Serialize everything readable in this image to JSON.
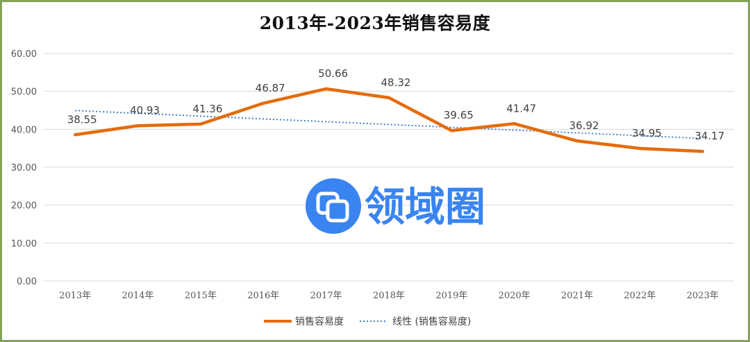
{
  "chart_data": {
    "type": "line",
    "title": "2013年-2023年销售容易度",
    "categories": [
      "2013年",
      "2014年",
      "2015年",
      "2016年",
      "2017年",
      "2018年",
      "2019年",
      "2020年",
      "2021年",
      "2022年",
      "2023年"
    ],
    "series": [
      {
        "name": "销售容易度",
        "values": [
          38.55,
          40.93,
          41.36,
          46.87,
          50.66,
          48.32,
          39.65,
          41.47,
          36.92,
          34.95,
          34.17
        ],
        "labels": [
          "38.55",
          "40.93",
          "41.36",
          "46.87",
          "50.66",
          "48.32",
          "39.65",
          "41.47",
          "36.92",
          "34.95",
          "34.17"
        ],
        "color": "#e46c0a",
        "style": "solid"
      },
      {
        "name": "线性 (销售容易度)",
        "type": "trendline-linear",
        "color": "#3c7ec4",
        "style": "dotted"
      }
    ],
    "yticks": [
      "0.00",
      "10.00",
      "20.00",
      "30.00",
      "40.00",
      "50.00",
      "60.00"
    ],
    "ylim": [
      0,
      60
    ],
    "grid": true,
    "legend": "bottom",
    "xlabel": "",
    "ylabel": ""
  },
  "watermark": {
    "text": "领域圈",
    "color": "#2f7ef0",
    "icon": "overlapping-squares-icon"
  },
  "colors": {
    "border": "#84a25a",
    "grid": "#d9d9d9"
  }
}
